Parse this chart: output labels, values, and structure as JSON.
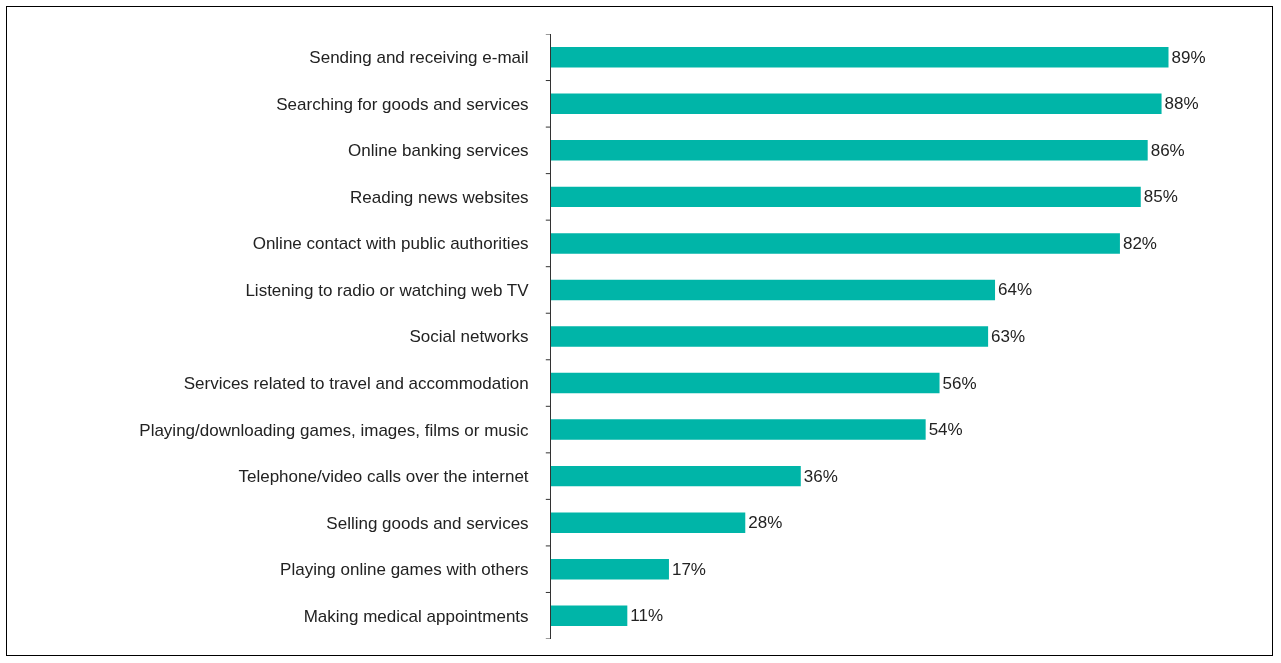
{
  "chart_data": {
    "type": "bar",
    "orientation": "horizontal",
    "categories": [
      "Sending and receiving e-mail",
      "Searching for goods and services",
      "Online banking services",
      "Reading news websites",
      "Online contact with public authorities",
      "Listening to radio or watching web TV",
      "Social networks",
      "Services related to travel and accommodation",
      "Playing/downloading games, images, films or music",
      "Telephone/video calls over the internet",
      "Selling goods and services",
      "Playing online games with others",
      "Making medical appointments"
    ],
    "values": [
      89,
      88,
      86,
      85,
      82,
      64,
      63,
      56,
      54,
      36,
      28,
      17,
      11
    ],
    "value_labels": [
      "89%",
      "88%",
      "86%",
      "85%",
      "82%",
      "64%",
      "63%",
      "56%",
      "54%",
      "36%",
      "28%",
      "17%",
      "11%"
    ],
    "color": "#00b5a8",
    "tick_labels": "y"
  }
}
